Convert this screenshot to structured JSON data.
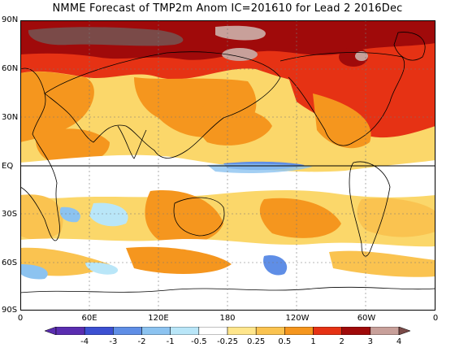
{
  "title": "NMME Forecast of TMP2m Anom IC=201610 for Lead 2 2016Dec",
  "lat_labels": [
    "90N",
    "60N",
    "30N",
    "EQ",
    "30S",
    "60S",
    "90S"
  ],
  "lon_labels": [
    "0",
    "60E",
    "120E",
    "180",
    "120W",
    "60W",
    "0"
  ],
  "colorbar": {
    "labels": [
      "-4",
      "-3",
      "-2",
      "-1",
      "-0.5",
      "-0.25",
      "0.25",
      "0.5",
      "1",
      "2",
      "3",
      "4"
    ],
    "colors": [
      "#5a2db0",
      "#3c50d2",
      "#5f8ee6",
      "#8cc3f0",
      "#b9e6f8",
      "#ffffff",
      "#ffe68c",
      "#fac350",
      "#f5961e",
      "#e63214",
      "#a00a0a",
      "#c8a09a"
    ]
  },
  "palette": {
    "land_outline": "#000000",
    "equator_line": "#000000",
    "grid": "#888888"
  }
}
